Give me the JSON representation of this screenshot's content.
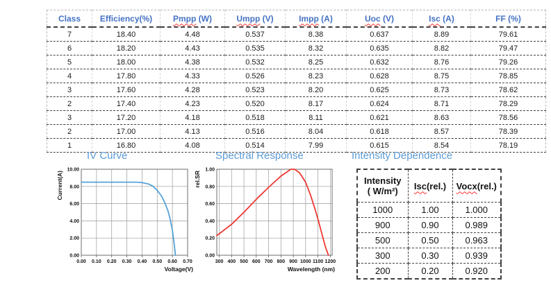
{
  "colors": {
    "header_text": "#4472C4",
    "section_title": "#5B9BD5",
    "squiggle": "#FF2B2B",
    "iv_curve": "#56A3D9",
    "sr_curve": "#EE3831"
  },
  "main_table": {
    "headers": [
      {
        "label": "Class",
        "wavy": ""
      },
      {
        "label": "Efficiency(%)",
        "wavy": ""
      },
      {
        "label": "Pmpp (W)",
        "wavy": "Pmpp"
      },
      {
        "label": "Umpp (V)",
        "wavy": "Umpp"
      },
      {
        "label": "Impp (A)",
        "wavy": "Impp"
      },
      {
        "label": "Uoc (V)",
        "wavy": "Uoc"
      },
      {
        "label": "Isc (A)",
        "wavy": "Isc"
      },
      {
        "label": "FF (%)",
        "wavy": ""
      }
    ],
    "rows": [
      [
        "7",
        "18.40",
        "4.48",
        "0.537",
        "8.38",
        "0.637",
        "8.89",
        "79.61"
      ],
      [
        "6",
        "18.20",
        "4.43",
        "0.535",
        "8.32",
        "0.635",
        "8.82",
        "79.47"
      ],
      [
        "5",
        "18.00",
        "4.38",
        "0.532",
        "8.25",
        "0.632",
        "8.76",
        "79.26"
      ],
      [
        "4",
        "17.80",
        "4.33",
        "0.526",
        "8.23",
        "0.628",
        "8.75",
        "78.85"
      ],
      [
        "3",
        "17.60",
        "4.28",
        "0.523",
        "8.20",
        "0.625",
        "8.73",
        "78.62"
      ],
      [
        "2",
        "17.40",
        "4.23",
        "0.520",
        "8.17",
        "0.624",
        "8.71",
        "78.29"
      ],
      [
        "3",
        "17.20",
        "4.18",
        "0.518",
        "8.11",
        "0.621",
        "8.63",
        "78.56"
      ],
      [
        "2",
        "17.00",
        "4.13",
        "0.516",
        "8.04",
        "0.618",
        "8.57",
        "78.39"
      ],
      [
        "1",
        "16.80",
        "4.08",
        "0.514",
        "7.99",
        "0.615",
        "8.54",
        "78.19"
      ]
    ]
  },
  "sections": {
    "iv": "IV Curve",
    "spectral": "Spectral Response",
    "intensity": "Intensity Dependence"
  },
  "chart_data": [
    {
      "type": "line",
      "name": "iv-curve",
      "title": "IV Curve",
      "xlabel": "Voltage(V)",
      "ylabel": "Current(A)",
      "ylabel_position": "top",
      "xlim": [
        0,
        0.7
      ],
      "ylim": [
        0,
        10
      ],
      "grid": true,
      "xtick_values": [
        0,
        0.1,
        0.2,
        0.3,
        0.4,
        0.5,
        0.6,
        0.7
      ],
      "xtick_labels": [
        "0.00",
        "0.10",
        "0.20",
        "0.30",
        "0.40",
        "0.50",
        "0.60",
        "0.70"
      ],
      "ytick_values": [
        0,
        2,
        4,
        6,
        8,
        10
      ],
      "ytick_labels": [
        "0.00",
        "2.00",
        "4.00",
        "6.00",
        "8.00",
        "10.00"
      ],
      "series": [
        {
          "name": "IV curve",
          "color": "#56A3D9",
          "points": [
            [
              0,
              8.5
            ],
            [
              0.1,
              8.5
            ],
            [
              0.2,
              8.5
            ],
            [
              0.3,
              8.5
            ],
            [
              0.36,
              8.5
            ],
            [
              0.4,
              8.45
            ],
            [
              0.44,
              8.3
            ],
            [
              0.47,
              8.05
            ],
            [
              0.5,
              7.55
            ],
            [
              0.53,
              6.85
            ],
            [
              0.55,
              6.1
            ],
            [
              0.57,
              5.2
            ],
            [
              0.585,
              4.2
            ],
            [
              0.6,
              2.9
            ],
            [
              0.61,
              1.6
            ],
            [
              0.62,
              0
            ]
          ]
        }
      ]
    },
    {
      "type": "line",
      "name": "spectral-response",
      "title": "Spectral Response",
      "xlabel": "Wavelength (nm)",
      "ylabel": "rel.SR",
      "ylabel_position": "top",
      "xlim": [
        280,
        1215
      ],
      "ylim": [
        0,
        1.0
      ],
      "grid": true,
      "xtick_values": [
        300,
        400,
        500,
        600,
        700,
        800,
        900,
        1000,
        1100,
        1200
      ],
      "xtick_labels": [
        "300",
        "400",
        "500",
        "600",
        "700",
        "800",
        "900",
        "1000",
        "1100",
        "1200"
      ],
      "ytick_values": [
        0,
        0.2,
        0.4,
        0.6,
        0.8,
        1.0
      ],
      "ytick_labels": [
        "0.00",
        "0.20",
        "0.40",
        "0.60",
        "0.80",
        "1.00"
      ],
      "series": [
        {
          "name": "rel.SR",
          "color": "#EE3831",
          "points": [
            [
              280,
              0.23
            ],
            [
              300,
              0.25
            ],
            [
              350,
              0.305
            ],
            [
              400,
              0.36
            ],
            [
              450,
              0.43
            ],
            [
              500,
              0.5
            ],
            [
              550,
              0.575
            ],
            [
              600,
              0.65
            ],
            [
              650,
              0.72
            ],
            [
              700,
              0.79
            ],
            [
              750,
              0.855
            ],
            [
              800,
              0.92
            ],
            [
              850,
              0.97
            ],
            [
              880,
              1.0
            ],
            [
              910,
              1.0
            ],
            [
              950,
              0.96
            ],
            [
              1000,
              0.85
            ],
            [
              1040,
              0.7
            ],
            [
              1080,
              0.52
            ],
            [
              1100,
              0.42
            ],
            [
              1130,
              0.26
            ],
            [
              1160,
              0.1
            ],
            [
              1185,
              0.0
            ]
          ]
        }
      ]
    }
  ],
  "intensity_table": {
    "headers": [
      {
        "label": "Intensity",
        "label2": "( W/m²)",
        "wavy": ""
      },
      {
        "label": "Isc(rel.)",
        "label2": "",
        "wavy": "Isc"
      },
      {
        "label": "Vocx(rel.)",
        "label2": "",
        "wavy": "Vocx"
      }
    ],
    "rows": [
      [
        "1000",
        "1.00",
        "1.000"
      ],
      [
        "900",
        "0.90",
        "0.989"
      ],
      [
        "500",
        "0.50",
        "0.963"
      ],
      [
        "300",
        "0.30",
        "0.939"
      ],
      [
        "200",
        "0.20",
        "0.920"
      ]
    ]
  }
}
